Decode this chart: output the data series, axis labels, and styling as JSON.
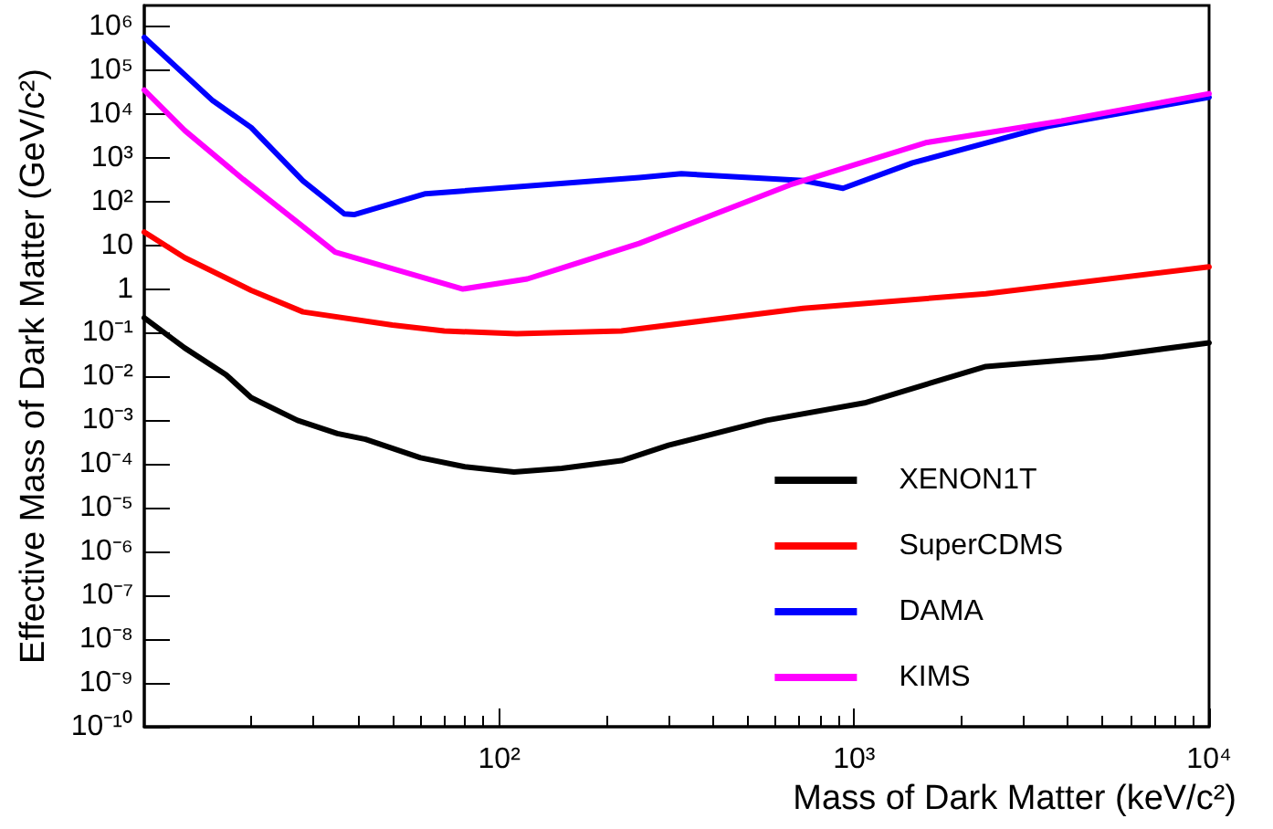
{
  "chart_data": {
    "type": "line",
    "xlabel": "Mass of Dark Matter (keV/c²)",
    "ylabel": "Effective Mass of Dark Matter (GeV/c²)",
    "log": "xy",
    "grid": false,
    "legend": "bottom right",
    "marker": "none",
    "line_style": "solid",
    "xlim": [
      10,
      10000
    ],
    "xticks": [
      {
        "value": 100,
        "label": "10²"
      },
      {
        "value": 1000,
        "label": "10³"
      },
      {
        "value": 10000,
        "label": "10⁴"
      }
    ],
    "ylim": [
      1e-10,
      3000000
    ],
    "yticks": [
      {
        "value": 1e-10,
        "label": "10⁻¹⁰"
      },
      {
        "value": 1e-09,
        "label": "10⁻⁹"
      },
      {
        "value": 1e-08,
        "label": "10⁻⁸"
      },
      {
        "value": 1e-07,
        "label": "10⁻⁷"
      },
      {
        "value": 1e-06,
        "label": "10⁻⁶"
      },
      {
        "value": 1e-05,
        "label": "10⁻⁵"
      },
      {
        "value": 0.0001,
        "label": "10⁻⁴"
      },
      {
        "value": 0.001,
        "label": "10⁻³"
      },
      {
        "value": 0.01,
        "label": "10⁻²"
      },
      {
        "value": 0.1,
        "label": "10⁻¹"
      },
      1,
      10,
      {
        "value": 100,
        "label": "10²"
      },
      {
        "value": 1000,
        "label": "10³"
      },
      {
        "value": 10000,
        "label": "10⁴"
      },
      {
        "value": 100000,
        "label": "10⁵"
      },
      {
        "value": 1000000,
        "label": "10⁶"
      }
    ],
    "series": [
      {
        "name": "XENON1T",
        "color": "#000000",
        "x": [
          10,
          13,
          17,
          20,
          27,
          35,
          42,
          60,
          80,
          110,
          150,
          221,
          300,
          567,
          1070,
          2350,
          5000,
          10000
        ],
        "values": [
          0.22,
          0.045,
          0.011,
          0.0033,
          0.001,
          0.0005,
          0.00037,
          0.00014,
          8.7e-05,
          6.6e-05,
          8e-05,
          0.00012,
          0.00027,
          0.001,
          0.0025,
          0.017,
          0.028,
          0.059
        ]
      },
      {
        "name": "SuperCDMS",
        "color": "#ff0000",
        "x": [
          10,
          13,
          20,
          28,
          50,
          70,
          112,
          221,
          718,
          2350,
          10000
        ],
        "values": [
          20,
          5.2,
          0.93,
          0.3,
          0.15,
          0.11,
          0.095,
          0.11,
          0.36,
          0.78,
          3.2
        ]
      },
      {
        "name": "DAMA",
        "color": "#0000ff",
        "x": [
          10,
          15.6,
          20,
          28,
          36.6,
          39,
          62,
          248,
          326,
          718,
          930,
          1460,
          3470,
          10000
        ],
        "values": [
          560000,
          20000,
          4900,
          295,
          52,
          50,
          150,
          350,
          430,
          300,
          200,
          760,
          5100,
          24000
        ]
      },
      {
        "name": "KIMS",
        "color": "#ff00ff",
        "x": [
          10,
          13,
          19,
          34.5,
          79,
          120,
          150,
          248,
          660,
          1590,
          3840,
          10000
        ],
        "values": [
          35000,
          4200,
          320,
          7,
          1,
          1.7,
          3,
          11,
          240,
          2200,
          6900,
          29000
        ]
      }
    ]
  }
}
